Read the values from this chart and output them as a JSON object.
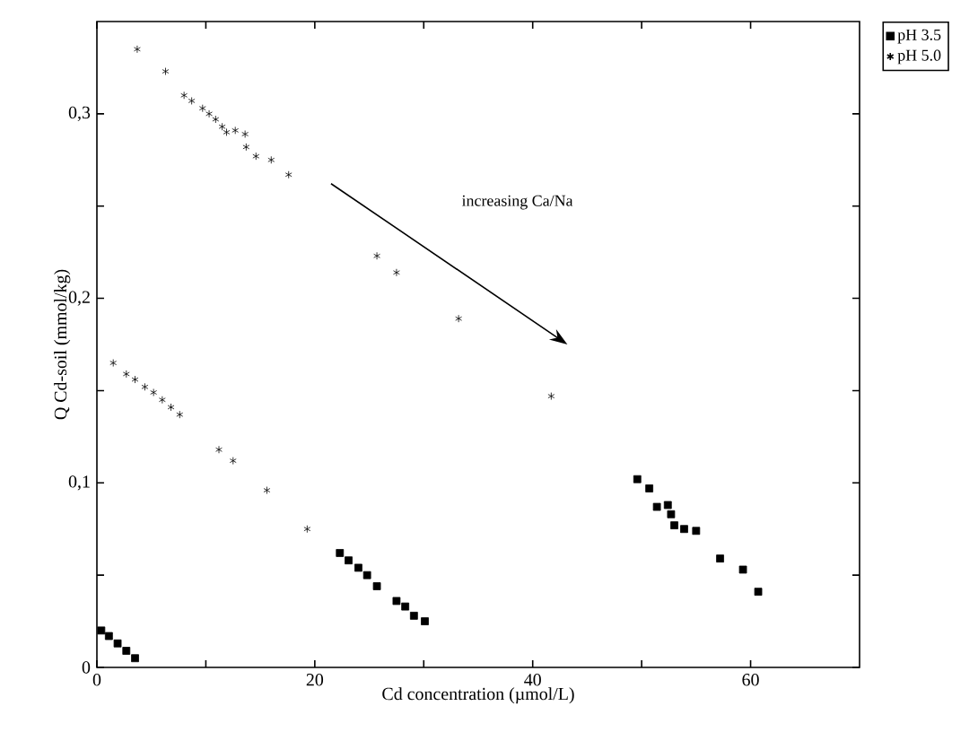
{
  "chart_data": {
    "type": "scatter",
    "xlabel": "Cd concentration (µmol/L)",
    "ylabel": "Q Cd-soil (mmol/kg)",
    "annotations": [
      "increasing Ca/Na"
    ],
    "xlim": [
      0,
      70
    ],
    "ylim": [
      0,
      0.35
    ],
    "xticks": [
      0,
      {
        "value": 10,
        "label": null
      },
      20,
      {
        "value": 30,
        "label": null
      },
      40,
      {
        "value": 50,
        "label": null
      },
      60
    ],
    "yticks": [
      0,
      {
        "value": 0.05,
        "label": null
      },
      {
        "value": 0.1,
        "label": "0,1"
      },
      {
        "value": 0.15,
        "label": null
      },
      {
        "value": 0.2,
        "label": "0,2"
      },
      {
        "value": 0.25,
        "label": null
      },
      {
        "value": 0.3,
        "label": "0,3"
      }
    ],
    "legend": "top right",
    "grid": false,
    "series": [
      {
        "name": "pH 3.5",
        "color": "#000000",
        "marker": "square",
        "x": [
          0.4,
          1.1,
          1.9,
          2.7,
          3.5,
          22.3,
          23.1,
          24.0,
          24.8,
          25.7,
          27.5,
          28.3,
          29.1,
          30.1,
          49.6,
          50.7,
          51.4,
          52.4,
          52.7,
          53.0,
          53.9,
          55.0,
          57.2,
          59.3,
          60.7
        ],
        "values": [
          0.02,
          0.017,
          0.013,
          0.009,
          0.005,
          0.062,
          0.058,
          0.054,
          0.05,
          0.044,
          0.036,
          0.033,
          0.028,
          0.025,
          0.102,
          0.097,
          0.087,
          0.088,
          0.083,
          0.077,
          0.075,
          0.074,
          0.059,
          0.053,
          0.041
        ]
      },
      {
        "name": "pH 5.0",
        "color": "#000000",
        "marker": "cross",
        "x": [
          3.7,
          6.3,
          8.0,
          8.7,
          9.7,
          10.3,
          10.9,
          11.5,
          11.9,
          12.7,
          13.6,
          13.7,
          14.6,
          16.0,
          17.6,
          25.7,
          27.5,
          33.2,
          41.7,
          1.5,
          2.7,
          3.5,
          4.4,
          5.2,
          6.0,
          6.8,
          7.6,
          11.2,
          12.5,
          15.6,
          19.3
        ],
        "values": [
          0.335,
          0.323,
          0.31,
          0.307,
          0.303,
          0.3,
          0.297,
          0.293,
          0.29,
          0.291,
          0.289,
          0.282,
          0.277,
          0.275,
          0.267,
          0.223,
          0.214,
          0.189,
          0.147,
          0.165,
          0.159,
          0.156,
          0.152,
          0.149,
          0.145,
          0.141,
          0.137,
          0.118,
          0.112,
          0.096,
          0.075
        ]
      }
    ]
  }
}
